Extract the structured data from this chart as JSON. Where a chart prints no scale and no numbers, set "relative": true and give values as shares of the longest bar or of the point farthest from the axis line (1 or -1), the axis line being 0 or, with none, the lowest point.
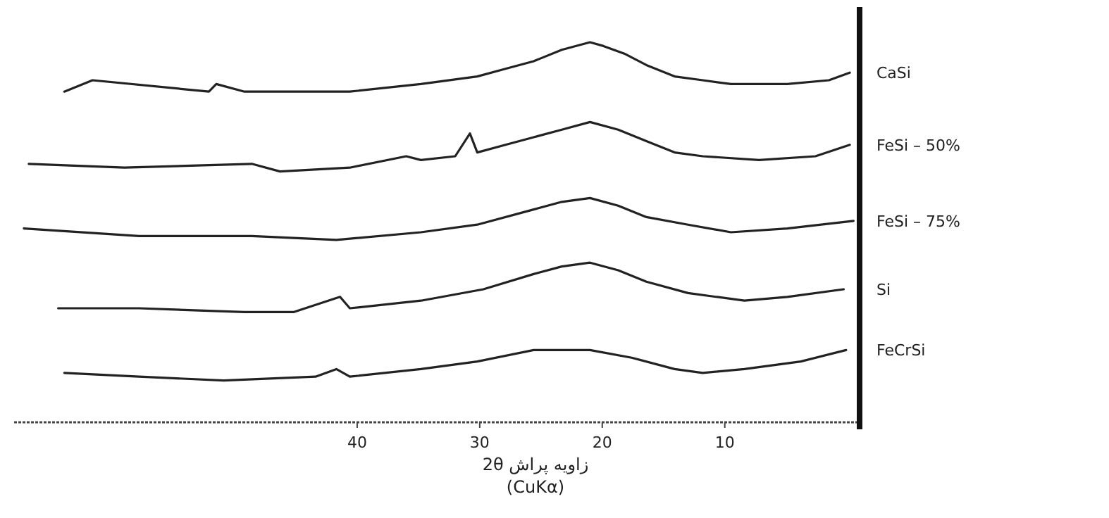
{
  "chart_data": {
    "type": "line",
    "relative": true,
    "xlabel": "زاویه پراش 2θ\n(CuKα)",
    "xlim": [
      68,
      -1
    ],
    "xticks": [
      40,
      30,
      20,
      10
    ],
    "series": [
      {
        "name": "CaSi",
        "color": "#222222",
        "x": [
          63.9,
          61.6,
          52.1,
          51.5,
          49.2,
          40.6,
          34.8,
          30.2,
          27.9,
          25.6,
          23.3,
          21.0,
          19.9,
          18.2,
          16.4,
          14.1,
          11.8,
          9.5,
          7.2,
          4.9,
          1.5,
          -0.2
        ],
        "values": [
          0.87,
          0.9,
          0.87,
          0.89,
          0.87,
          0.87,
          0.89,
          0.91,
          0.93,
          0.95,
          0.98,
          1.0,
          0.99,
          0.97,
          0.94,
          0.91,
          0.9,
          0.89,
          0.89,
          0.89,
          0.9,
          0.92
        ]
      },
      {
        "name": "FeSi – 50%",
        "color": "#222222",
        "x": [
          66.8,
          59.0,
          48.6,
          46.3,
          40.6,
          36.0,
          34.8,
          32.0,
          30.8,
          30.2,
          27.9,
          25.6,
          23.3,
          21.0,
          18.7,
          16.4,
          14.1,
          11.8,
          7.2,
          2.6,
          -0.2
        ],
        "values": [
          0.68,
          0.67,
          0.68,
          0.66,
          0.67,
          0.7,
          0.69,
          0.7,
          0.76,
          0.71,
          0.73,
          0.75,
          0.77,
          0.79,
          0.77,
          0.74,
          0.71,
          0.7,
          0.69,
          0.7,
          0.73
        ]
      },
      {
        "name": "FeSi – 75%",
        "color": "#222222",
        "x": [
          67.2,
          57.8,
          48.6,
          41.7,
          34.8,
          30.2,
          25.6,
          23.3,
          21.0,
          18.7,
          16.4,
          13.0,
          9.5,
          4.9,
          -0.5
        ],
        "values": [
          0.51,
          0.49,
          0.49,
          0.48,
          0.5,
          0.52,
          0.56,
          0.58,
          0.59,
          0.57,
          0.54,
          0.52,
          0.5,
          0.51,
          0.53
        ]
      },
      {
        "name": "Si",
        "color": "#222222",
        "x": [
          64.4,
          57.8,
          49.2,
          45.2,
          41.4,
          40.6,
          34.8,
          29.7,
          25.6,
          23.3,
          21.0,
          18.7,
          16.4,
          13.0,
          8.4,
          4.9,
          0.3
        ],
        "values": [
          0.3,
          0.3,
          0.29,
          0.29,
          0.33,
          0.3,
          0.32,
          0.35,
          0.39,
          0.41,
          0.42,
          0.4,
          0.37,
          0.34,
          0.32,
          0.33,
          0.35
        ]
      },
      {
        "name": "FeCrSi",
        "color": "#222222",
        "x": [
          63.9,
          57.8,
          50.9,
          43.4,
          41.7,
          40.6,
          34.8,
          30.2,
          25.6,
          21.0,
          17.6,
          14.1,
          11.8,
          8.4,
          3.8,
          0.1
        ],
        "values": [
          0.13,
          0.12,
          0.11,
          0.12,
          0.14,
          0.12,
          0.14,
          0.16,
          0.19,
          0.19,
          0.17,
          0.14,
          0.13,
          0.14,
          0.16,
          0.19
        ]
      }
    ]
  }
}
